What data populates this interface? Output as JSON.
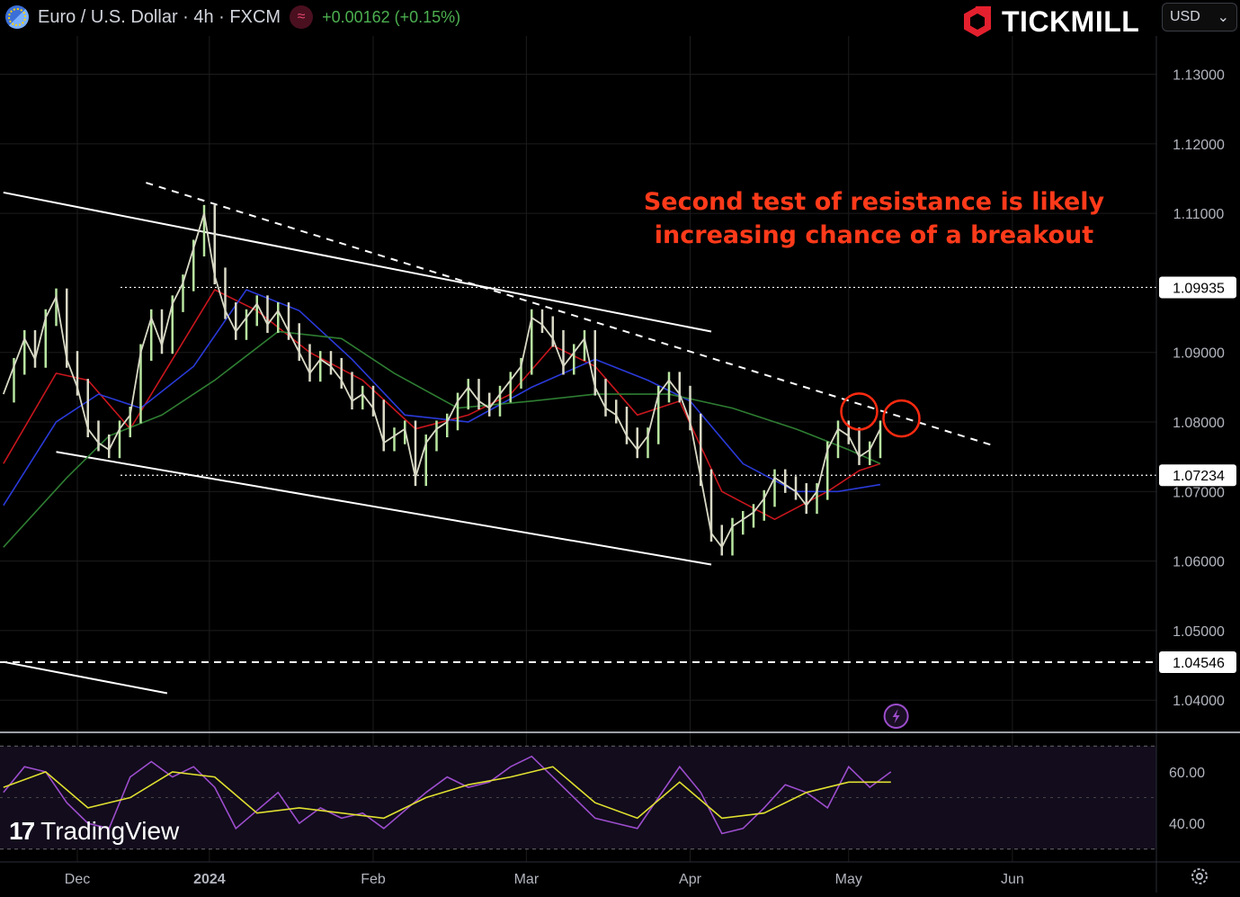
{
  "header": {
    "symbol_title": "Euro / U.S. Dollar · 4h · FXCM",
    "indicator_badge": "≈",
    "change": "+0.00162 (+0.15%)"
  },
  "brand": {
    "name": "TICKMILL"
  },
  "currency_select": {
    "value": "USD",
    "caret": "⌄"
  },
  "watermark": {
    "mark": "17",
    "text": "TradingView"
  },
  "annotation": {
    "line1": "Second test of resistance is likely",
    "line2": "increasing chance of a breakout"
  },
  "colors": {
    "background": "#000000",
    "candle": "#d9d9c6",
    "candle_up": "#b8e6a0",
    "ma_red": "#c8161d",
    "ma_blue": "#2a3ad8",
    "ma_green": "#2e7d32",
    "rsi": "#9c4dcc",
    "rsi_ma": "#e0e030",
    "annotation": "#ff3a1a",
    "circle": "#ff2a10",
    "positive": "#4caf50"
  },
  "chart_data": {
    "type": "line",
    "instrument": "Euro / U.S. Dollar",
    "timeframe": "4h",
    "ylim": [
      1.0355,
      1.1355
    ],
    "y_ticks": [
      "1.13000",
      "1.12000",
      "1.11000",
      "1.09000",
      "1.08000",
      "1.07000",
      "1.06000",
      "1.05000",
      "1.04000"
    ],
    "y_tick_values": [
      1.13,
      1.12,
      1.11,
      1.09,
      1.08,
      1.07,
      1.06,
      1.05,
      1.04
    ],
    "price_labels": [
      {
        "text": "1.09935",
        "value": 1.09935,
        "style": "dotted"
      },
      {
        "text": "1.07234",
        "value": 1.07234,
        "style": "dotted"
      },
      {
        "text": "1.04546",
        "value": 1.04546,
        "style": "dashed"
      }
    ],
    "x_ticks": [
      {
        "label": "Dec",
        "bold": false,
        "day": 6
      },
      {
        "label": "2024",
        "bold": true,
        "day": 31
      },
      {
        "label": "Feb",
        "bold": false,
        "day": 62
      },
      {
        "label": "Mar",
        "bold": false,
        "day": 91
      },
      {
        "label": "Apr",
        "bold": false,
        "day": 122
      },
      {
        "label": "May",
        "bold": false,
        "day": 152
      },
      {
        "label": "Jun",
        "bold": false,
        "day": 183
      }
    ],
    "x_range_days": [
      -8,
      200
    ],
    "price_series": [
      {
        "d": -8,
        "v": 1.084
      },
      {
        "d": -6,
        "v": 1.088
      },
      {
        "d": -4,
        "v": 1.092
      },
      {
        "d": -2,
        "v": 1.089
      },
      {
        "d": 0,
        "v": 1.095
      },
      {
        "d": 2,
        "v": 1.098
      },
      {
        "d": 4,
        "v": 1.089
      },
      {
        "d": 6,
        "v": 1.085
      },
      {
        "d": 8,
        "v": 1.079
      },
      {
        "d": 10,
        "v": 1.077
      },
      {
        "d": 12,
        "v": 1.076
      },
      {
        "d": 14,
        "v": 1.079
      },
      {
        "d": 16,
        "v": 1.081
      },
      {
        "d": 18,
        "v": 1.09
      },
      {
        "d": 20,
        "v": 1.095
      },
      {
        "d": 22,
        "v": 1.091
      },
      {
        "d": 24,
        "v": 1.097
      },
      {
        "d": 26,
        "v": 1.1
      },
      {
        "d": 28,
        "v": 1.105
      },
      {
        "d": 30,
        "v": 1.11
      },
      {
        "d": 32,
        "v": 1.101
      },
      {
        "d": 34,
        "v": 1.096
      },
      {
        "d": 36,
        "v": 1.093
      },
      {
        "d": 38,
        "v": 1.095
      },
      {
        "d": 40,
        "v": 1.097
      },
      {
        "d": 42,
        "v": 1.094
      },
      {
        "d": 44,
        "v": 1.096
      },
      {
        "d": 46,
        "v": 1.093
      },
      {
        "d": 48,
        "v": 1.09
      },
      {
        "d": 50,
        "v": 1.087
      },
      {
        "d": 52,
        "v": 1.089
      },
      {
        "d": 54,
        "v": 1.088
      },
      {
        "d": 56,
        "v": 1.086
      },
      {
        "d": 58,
        "v": 1.083
      },
      {
        "d": 60,
        "v": 1.084
      },
      {
        "d": 62,
        "v": 1.082
      },
      {
        "d": 64,
        "v": 1.077
      },
      {
        "d": 66,
        "v": 1.078
      },
      {
        "d": 68,
        "v": 1.079
      },
      {
        "d": 70,
        "v": 1.072
      },
      {
        "d": 72,
        "v": 1.077
      },
      {
        "d": 74,
        "v": 1.079
      },
      {
        "d": 76,
        "v": 1.08
      },
      {
        "d": 78,
        "v": 1.083
      },
      {
        "d": 80,
        "v": 1.085
      },
      {
        "d": 82,
        "v": 1.083
      },
      {
        "d": 84,
        "v": 1.082
      },
      {
        "d": 86,
        "v": 1.084
      },
      {
        "d": 88,
        "v": 1.086
      },
      {
        "d": 90,
        "v": 1.088
      },
      {
        "d": 92,
        "v": 1.095
      },
      {
        "d": 94,
        "v": 1.094
      },
      {
        "d": 96,
        "v": 1.092
      },
      {
        "d": 98,
        "v": 1.088
      },
      {
        "d": 100,
        "v": 1.09
      },
      {
        "d": 102,
        "v": 1.092
      },
      {
        "d": 104,
        "v": 1.085
      },
      {
        "d": 106,
        "v": 1.082
      },
      {
        "d": 108,
        "v": 1.081
      },
      {
        "d": 110,
        "v": 1.078
      },
      {
        "d": 112,
        "v": 1.076
      },
      {
        "d": 114,
        "v": 1.078
      },
      {
        "d": 116,
        "v": 1.084
      },
      {
        "d": 118,
        "v": 1.086
      },
      {
        "d": 120,
        "v": 1.084
      },
      {
        "d": 122,
        "v": 1.08
      },
      {
        "d": 124,
        "v": 1.072
      },
      {
        "d": 126,
        "v": 1.064
      },
      {
        "d": 128,
        "v": 1.062
      },
      {
        "d": 130,
        "v": 1.065
      },
      {
        "d": 132,
        "v": 1.066
      },
      {
        "d": 134,
        "v": 1.067
      },
      {
        "d": 136,
        "v": 1.069
      },
      {
        "d": 138,
        "v": 1.072
      },
      {
        "d": 140,
        "v": 1.071
      },
      {
        "d": 142,
        "v": 1.07
      },
      {
        "d": 144,
        "v": 1.068
      },
      {
        "d": 146,
        "v": 1.07
      },
      {
        "d": 148,
        "v": 1.076
      },
      {
        "d": 150,
        "v": 1.079
      },
      {
        "d": 152,
        "v": 1.078
      },
      {
        "d": 154,
        "v": 1.075
      },
      {
        "d": 156,
        "v": 1.076
      },
      {
        "d": 158,
        "v": 1.079
      }
    ],
    "moving_averages": [
      {
        "color_key": "ma_red",
        "points": [
          {
            "d": -8,
            "v": 1.074
          },
          {
            "d": 2,
            "v": 1.087
          },
          {
            "d": 8,
            "v": 1.086
          },
          {
            "d": 16,
            "v": 1.079
          },
          {
            "d": 24,
            "v": 1.089
          },
          {
            "d": 32,
            "v": 1.099
          },
          {
            "d": 40,
            "v": 1.096
          },
          {
            "d": 50,
            "v": 1.09
          },
          {
            "d": 60,
            "v": 1.086
          },
          {
            "d": 70,
            "v": 1.079
          },
          {
            "d": 80,
            "v": 1.081
          },
          {
            "d": 88,
            "v": 1.084
          },
          {
            "d": 96,
            "v": 1.091
          },
          {
            "d": 104,
            "v": 1.088
          },
          {
            "d": 112,
            "v": 1.081
          },
          {
            "d": 120,
            "v": 1.083
          },
          {
            "d": 128,
            "v": 1.07
          },
          {
            "d": 138,
            "v": 1.066
          },
          {
            "d": 148,
            "v": 1.07
          },
          {
            "d": 154,
            "v": 1.073
          },
          {
            "d": 158,
            "v": 1.074
          }
        ]
      },
      {
        "color_key": "ma_blue",
        "points": [
          {
            "d": -8,
            "v": 1.068
          },
          {
            "d": 2,
            "v": 1.08
          },
          {
            "d": 10,
            "v": 1.084
          },
          {
            "d": 18,
            "v": 1.082
          },
          {
            "d": 28,
            "v": 1.088
          },
          {
            "d": 38,
            "v": 1.099
          },
          {
            "d": 48,
            "v": 1.096
          },
          {
            "d": 58,
            "v": 1.089
          },
          {
            "d": 68,
            "v": 1.081
          },
          {
            "d": 80,
            "v": 1.08
          },
          {
            "d": 92,
            "v": 1.085
          },
          {
            "d": 104,
            "v": 1.089
          },
          {
            "d": 114,
            "v": 1.086
          },
          {
            "d": 122,
            "v": 1.083
          },
          {
            "d": 132,
            "v": 1.074
          },
          {
            "d": 142,
            "v": 1.07
          },
          {
            "d": 150,
            "v": 1.07
          },
          {
            "d": 158,
            "v": 1.071
          }
        ]
      },
      {
        "color_key": "ma_green",
        "points": [
          {
            "d": -8,
            "v": 1.062
          },
          {
            "d": 4,
            "v": 1.072
          },
          {
            "d": 12,
            "v": 1.078
          },
          {
            "d": 22,
            "v": 1.081
          },
          {
            "d": 32,
            "v": 1.086
          },
          {
            "d": 44,
            "v": 1.093
          },
          {
            "d": 56,
            "v": 1.092
          },
          {
            "d": 66,
            "v": 1.087
          },
          {
            "d": 78,
            "v": 1.082
          },
          {
            "d": 92,
            "v": 1.083
          },
          {
            "d": 104,
            "v": 1.084
          },
          {
            "d": 118,
            "v": 1.084
          },
          {
            "d": 130,
            "v": 1.082
          },
          {
            "d": 142,
            "v": 1.079
          },
          {
            "d": 152,
            "v": 1.076
          },
          {
            "d": 158,
            "v": 1.074
          }
        ]
      }
    ],
    "trendlines": [
      {
        "style": "solid",
        "from": {
          "d": -8,
          "v": 1.113
        },
        "to": {
          "d": 126,
          "v": 1.093
        }
      },
      {
        "style": "solid",
        "from": {
          "d": 2,
          "v": 1.0757
        },
        "to": {
          "d": 126,
          "v": 1.0595
        }
      },
      {
        "style": "dashed",
        "from": {
          "d": 19,
          "v": 1.1144
        },
        "to": {
          "d": 179,
          "v": 1.0767
        }
      },
      {
        "style": "solid",
        "from": {
          "d": -8,
          "v": 1.0455
        },
        "to": {
          "d": 23,
          "v": 1.041
        }
      }
    ],
    "highlight_circles": [
      {
        "d": 154,
        "v": 1.0815
      },
      {
        "d": 162,
        "v": 1.0805
      }
    ],
    "rsi": {
      "y_ticks": [
        "60.00",
        "40.00"
      ],
      "y_tick_values": [
        60,
        40
      ],
      "band": [
        30,
        70
      ],
      "ylim": [
        25,
        75
      ],
      "values": [
        {
          "d": -8,
          "v": 52
        },
        {
          "d": -4,
          "v": 62
        },
        {
          "d": 0,
          "v": 60
        },
        {
          "d": 4,
          "v": 48
        },
        {
          "d": 8,
          "v": 40
        },
        {
          "d": 12,
          "v": 38
        },
        {
          "d": 16,
          "v": 58
        },
        {
          "d": 20,
          "v": 64
        },
        {
          "d": 24,
          "v": 58
        },
        {
          "d": 28,
          "v": 62
        },
        {
          "d": 32,
          "v": 54
        },
        {
          "d": 36,
          "v": 38
        },
        {
          "d": 40,
          "v": 45
        },
        {
          "d": 44,
          "v": 52
        },
        {
          "d": 48,
          "v": 40
        },
        {
          "d": 52,
          "v": 46
        },
        {
          "d": 56,
          "v": 42
        },
        {
          "d": 60,
          "v": 44
        },
        {
          "d": 64,
          "v": 38
        },
        {
          "d": 68,
          "v": 45
        },
        {
          "d": 72,
          "v": 52
        },
        {
          "d": 76,
          "v": 58
        },
        {
          "d": 80,
          "v": 54
        },
        {
          "d": 84,
          "v": 56
        },
        {
          "d": 88,
          "v": 62
        },
        {
          "d": 92,
          "v": 66
        },
        {
          "d": 96,
          "v": 58
        },
        {
          "d": 100,
          "v": 50
        },
        {
          "d": 104,
          "v": 42
        },
        {
          "d": 108,
          "v": 40
        },
        {
          "d": 112,
          "v": 38
        },
        {
          "d": 116,
          "v": 50
        },
        {
          "d": 120,
          "v": 62
        },
        {
          "d": 124,
          "v": 52
        },
        {
          "d": 128,
          "v": 36
        },
        {
          "d": 132,
          "v": 38
        },
        {
          "d": 136,
          "v": 46
        },
        {
          "d": 140,
          "v": 55
        },
        {
          "d": 144,
          "v": 52
        },
        {
          "d": 148,
          "v": 46
        },
        {
          "d": 152,
          "v": 62
        },
        {
          "d": 156,
          "v": 54
        },
        {
          "d": 160,
          "v": 60
        }
      ],
      "ma": [
        {
          "d": -8,
          "v": 54
        },
        {
          "d": 0,
          "v": 60
        },
        {
          "d": 8,
          "v": 46
        },
        {
          "d": 16,
          "v": 50
        },
        {
          "d": 24,
          "v": 60
        },
        {
          "d": 32,
          "v": 58
        },
        {
          "d": 40,
          "v": 44
        },
        {
          "d": 48,
          "v": 46
        },
        {
          "d": 56,
          "v": 44
        },
        {
          "d": 64,
          "v": 42
        },
        {
          "d": 72,
          "v": 50
        },
        {
          "d": 80,
          "v": 55
        },
        {
          "d": 88,
          "v": 58
        },
        {
          "d": 96,
          "v": 62
        },
        {
          "d": 104,
          "v": 48
        },
        {
          "d": 112,
          "v": 42
        },
        {
          "d": 120,
          "v": 56
        },
        {
          "d": 128,
          "v": 42
        },
        {
          "d": 136,
          "v": 44
        },
        {
          "d": 144,
          "v": 52
        },
        {
          "d": 152,
          "v": 56
        },
        {
          "d": 160,
          "v": 56
        }
      ]
    }
  }
}
